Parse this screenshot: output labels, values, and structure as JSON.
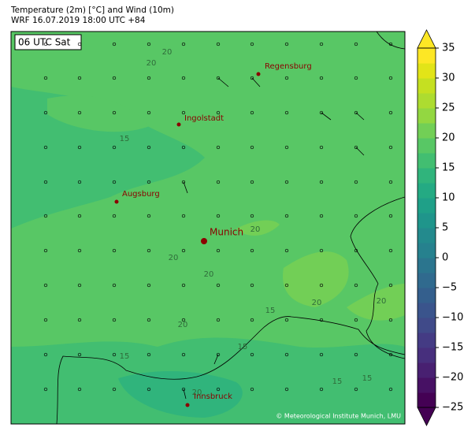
{
  "header": {
    "title_line1": "Temperature (2m) [°C] and Wind (10m)",
    "title_line2": "WRF 16.07.2019 18:00 UTC +84"
  },
  "time_label": "06 UTC Sat",
  "cities": [
    {
      "name": "Regensburg"
    },
    {
      "name": "Ingolstadt"
    },
    {
      "name": "Augsburg"
    },
    {
      "name": "Munich"
    },
    {
      "name": "Innsbruck"
    }
  ],
  "contour_labels": [
    20,
    20,
    15,
    20,
    20,
    20,
    20,
    20,
    20,
    15,
    15,
    15,
    15,
    15,
    20
  ],
  "copyright": "© Meteorological Institute Munich, LMU",
  "colorbar": {
    "lim": [
      -25,
      35
    ],
    "ticks": [
      35,
      30,
      25,
      20,
      15,
      10,
      5,
      0,
      {
        "value": -5,
        "label": "−5"
      },
      {
        "value": -10,
        "label": "−10"
      },
      {
        "value": -15,
        "label": "−15"
      },
      {
        "value": -20,
        "label": "−20"
      },
      {
        "value": -25,
        "label": "−25"
      }
    ],
    "colors": [
      "#440154",
      "#471164",
      "#482071",
      "#472f7d",
      "#443b84",
      "#404a89",
      "#3a548c",
      "#345f8d",
      "#306a8e",
      "#2b758e",
      "#26818e",
      "#238a8d",
      "#1f958b",
      "#1fa088",
      "#24aa83",
      "#30b47c",
      "#42be71",
      "#58c765",
      "#72cf56",
      "#93d741",
      "#addc30",
      "#c5e021",
      "#e2e418",
      "#fde725"
    ]
  }
}
